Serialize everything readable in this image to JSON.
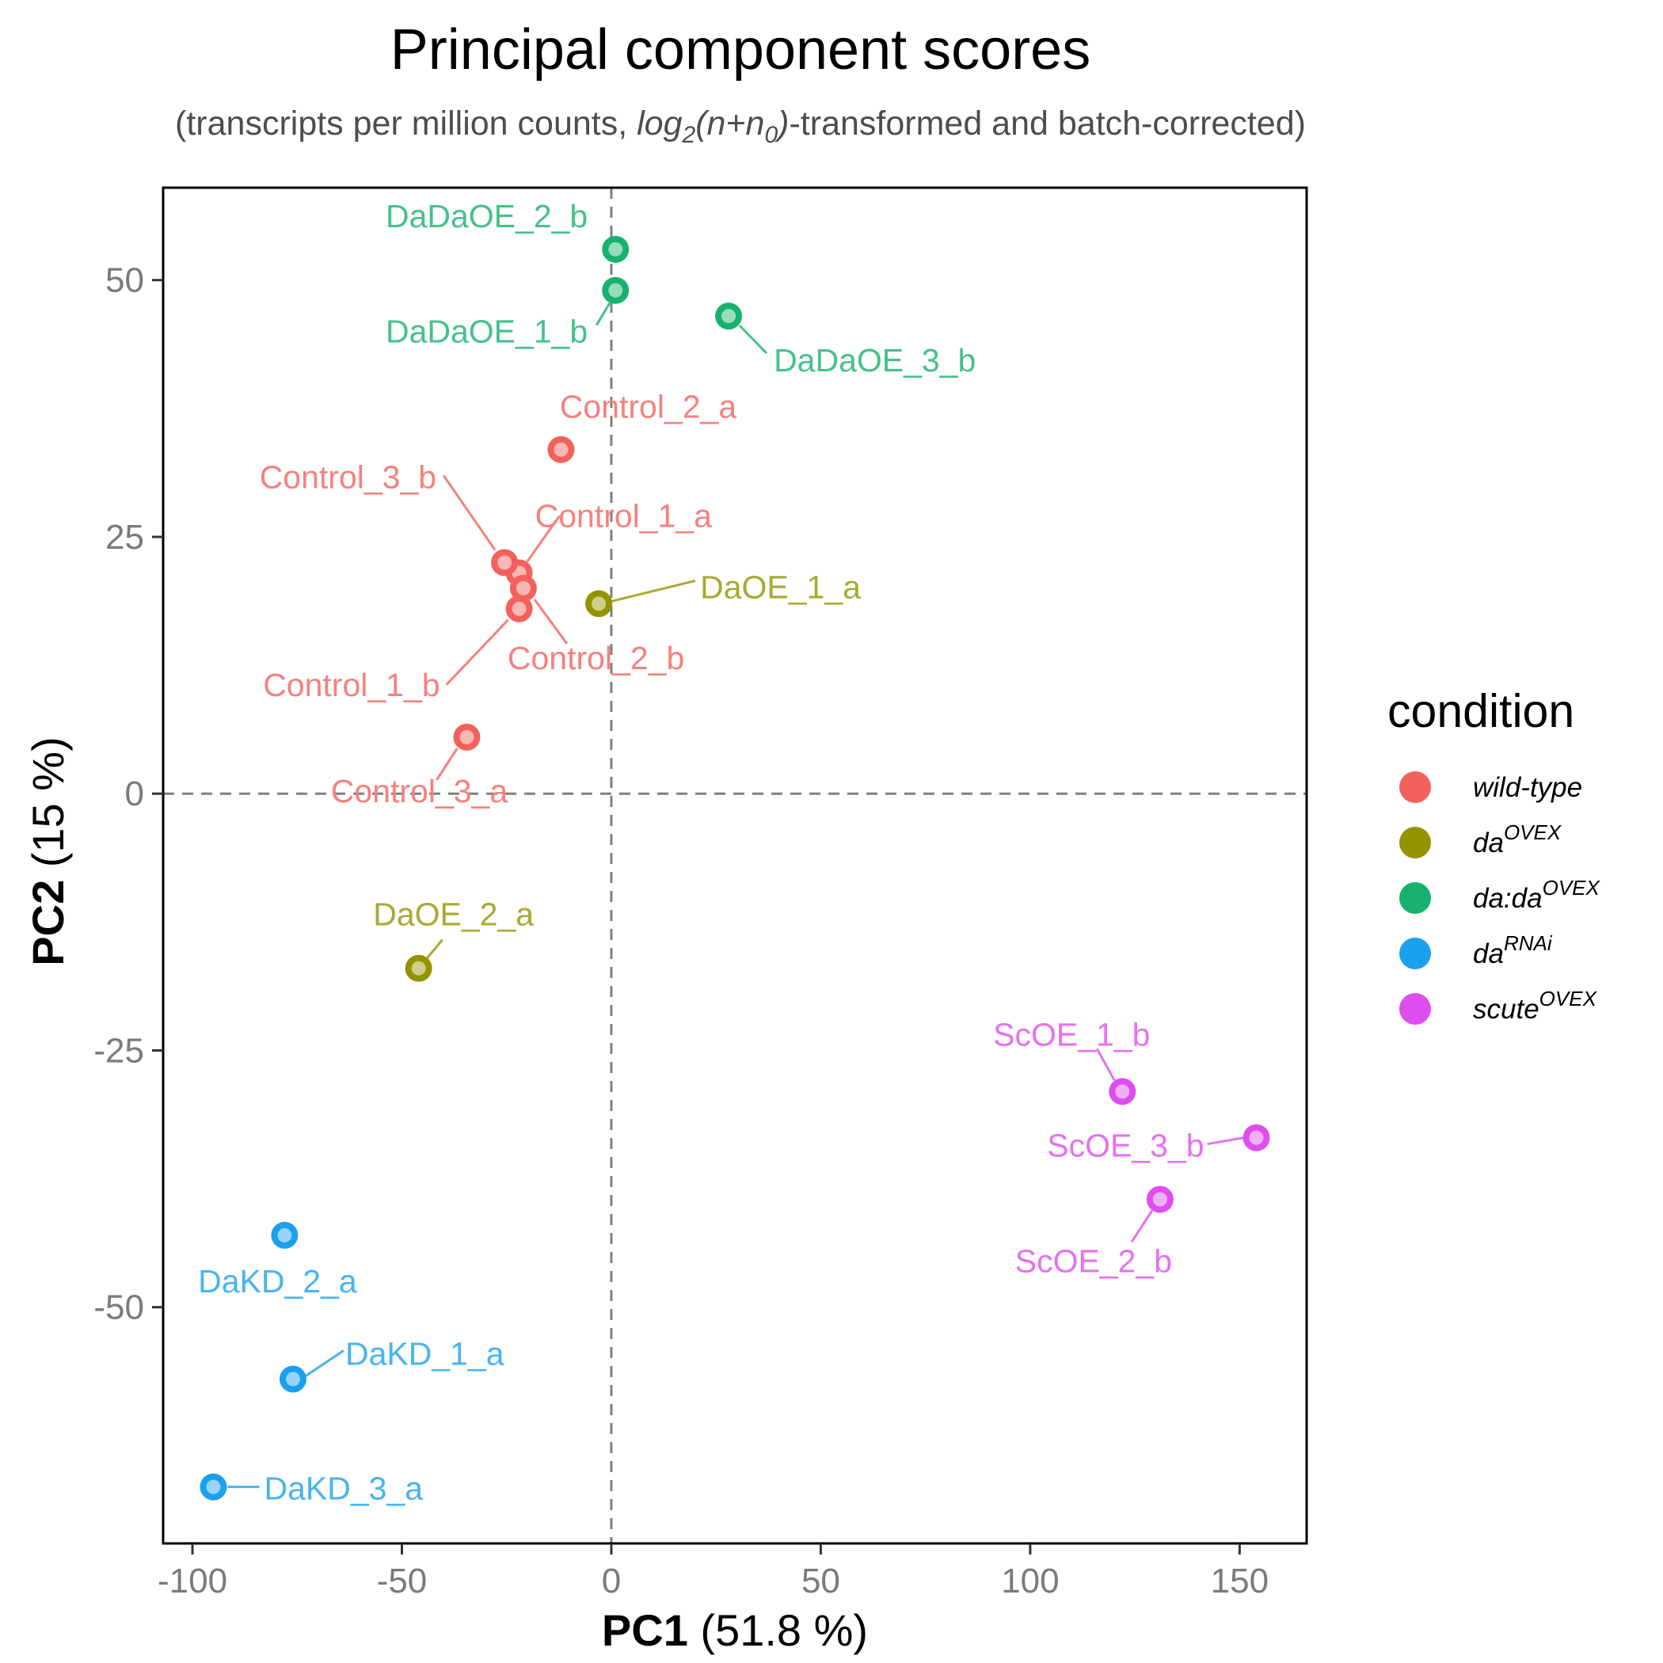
{
  "chart_data": {
    "type": "scatter",
    "title": "Principal component scores",
    "subtitle": {
      "prefix": "(transcripts per million counts, ",
      "formula_log": "log",
      "formula_log_sub": "2",
      "formula_open": "(n+n",
      "formula_n_sub": "0",
      "formula_close": ")",
      "suffix": "-transformed and batch-corrected)"
    },
    "xlabel": {
      "bold": "PC1",
      "rest": " (51.8 %)"
    },
    "ylabel": {
      "bold": "PC2",
      "rest": " (15 %)"
    },
    "xlim": [
      -107,
      166
    ],
    "ylim": [
      -73,
      59
    ],
    "xticks": [
      -100,
      -50,
      0,
      50,
      100,
      150
    ],
    "xtick_labels": [
      "-100",
      "-50",
      "0",
      "50",
      "100",
      "150"
    ],
    "yticks": [
      -50,
      -25,
      0,
      25,
      50
    ],
    "ytick_labels": [
      "-50",
      "-25",
      "0",
      "25",
      "50"
    ],
    "reference_lines": {
      "x": 0,
      "y": 0,
      "style": "dashed"
    },
    "grid": false,
    "legend": {
      "title": "condition",
      "position": "right",
      "entries": [
        {
          "key": "wild-type",
          "label": "wild-type",
          "sup": "",
          "color": "#F2615C"
        },
        {
          "key": "daOVEX",
          "label": "da",
          "sup": "OVEX",
          "color": "#949300"
        },
        {
          "key": "dadaOVEX",
          "label": "da:da",
          "sup": "OVEX",
          "color": "#17B26D"
        },
        {
          "key": "daRNAi",
          "label": "da",
          "sup": "RNAi",
          "color": "#1BA0EE"
        },
        {
          "key": "scuteOVEX",
          "label": "scute",
          "sup": "OVEX",
          "color": "#DE4EEE"
        }
      ]
    },
    "series": [
      {
        "condition": "wild-type",
        "points": [
          {
            "label": "Control_1_a",
            "x": -22,
            "y": 21.5
          },
          {
            "label": "Control_2_a",
            "x": -12,
            "y": 33.5
          },
          {
            "label": "Control_3_a",
            "x": -34.5,
            "y": 5.5
          },
          {
            "label": "Control_1_b",
            "x": -22,
            "y": 18
          },
          {
            "label": "Control_2_b",
            "x": -21,
            "y": 20
          },
          {
            "label": "Control_3_b",
            "x": -25.5,
            "y": 22.5
          }
        ]
      },
      {
        "condition": "daOVEX",
        "points": [
          {
            "label": "DaOE_1_a",
            "x": -3,
            "y": 18.5
          },
          {
            "label": "DaOE_2_a",
            "x": -46,
            "y": -17
          }
        ]
      },
      {
        "condition": "dadaOVEX",
        "points": [
          {
            "label": "DaDaOE_1_b",
            "x": 1,
            "y": 49
          },
          {
            "label": "DaDaOE_2_b",
            "x": 1,
            "y": 53
          },
          {
            "label": "DaDaOE_3_b",
            "x": 28,
            "y": 46.5
          }
        ]
      },
      {
        "condition": "daRNAi",
        "points": [
          {
            "label": "DaKD_1_a",
            "x": -76,
            "y": -57
          },
          {
            "label": "DaKD_2_a",
            "x": -78,
            "y": -43
          },
          {
            "label": "DaKD_3_a",
            "x": -95,
            "y": -67.5
          }
        ]
      },
      {
        "condition": "scuteOVEX",
        "points": [
          {
            "label": "ScOE_1_b",
            "x": 122,
            "y": -29
          },
          {
            "label": "ScOE_2_b",
            "x": 131,
            "y": -39.5
          },
          {
            "label": "ScOE_3_b",
            "x": 154,
            "y": -33.5
          }
        ]
      }
    ]
  }
}
